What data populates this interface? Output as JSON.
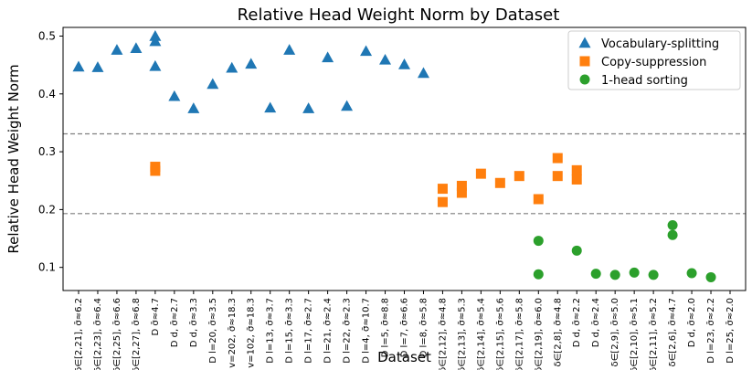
{
  "chart_data": {
    "type": "scatter",
    "title": "Relative Head Weight Norm by Dataset",
    "xlabel": "Dataset",
    "ylabel": "Relative Head Weight Norm",
    "ylim": [
      0.06,
      0.515
    ],
    "yticks": [
      0.1,
      0.2,
      0.3,
      0.4,
      0.5
    ],
    "ytick_labels": [
      "0.1",
      "0.2",
      "0.3",
      "0.4",
      "0.5"
    ],
    "legend_position": "top-right",
    "categories": [
      "D δ∈[2,21], σ̄≈6.2",
      "D δ∈[2,23], σ̄≈6.4",
      "D δ∈[2,25], σ̄≈6.6",
      "D δ∈[2,27], σ̄≈6.8",
      "D σ̄≈4.7",
      "D d, σ̄≈2.7",
      "D d, σ̄≈3.3",
      "D l=20, σ̄≈3.5",
      "D v=202, σ̄≈18.3",
      "D v=102, σ̄≈18.3",
      "D l=13, σ̄≈3.7",
      "D l=15, σ̄≈3.3",
      "D l=17, σ̄≈2.7",
      "D l=21, σ̄≈2.4",
      "D l=22, σ̄≈2.3",
      "D l=4, σ̄≈10.7",
      "D l=5, σ̄≈8.8",
      "D l=7, σ̄≈6.6",
      "D l=8, σ̄≈5.8",
      "D δ∈[2,12], σ̄≈4.8",
      "D δ∈[2,13], σ̄≈5.3",
      "D δ∈[2,14], σ̄≈5.4",
      "D δ∈[2,15], σ̄≈5.6",
      "D δ∈[2,17], σ̄≈5.8",
      "D δ∈[2,19], σ̄≈6.0",
      "D δ∈[2,8], σ̄≈4.8",
      "D d, σ̄≈2.2",
      "D d, σ̄≈2.4",
      "D δ∈[2,9], σ̄≈5.0",
      "D δ∈[2,10], σ̄≈5.1",
      "D δ∈[2,11], σ̄≈5.2",
      "D δ∈[2,6], σ̄≈4.7",
      "D d, σ̄≈2.0",
      "D l=23, σ̄≈2.2",
      "D l=25, σ̄≈2.0"
    ],
    "series": [
      {
        "name": "Vocabulary-splitting",
        "marker": "triangle",
        "color": "#1f77b4",
        "points": [
          {
            "x": 0,
            "y": 0.447
          },
          {
            "x": 1,
            "y": 0.446
          },
          {
            "x": 2,
            "y": 0.476
          },
          {
            "x": 3,
            "y": 0.479
          },
          {
            "x": 4,
            "y": 0.5
          },
          {
            "x": 4,
            "y": 0.491
          },
          {
            "x": 4,
            "y": 0.448
          },
          {
            "x": 5,
            "y": 0.396
          },
          {
            "x": 6,
            "y": 0.375
          },
          {
            "x": 7,
            "y": 0.417
          },
          {
            "x": 8,
            "y": 0.445
          },
          {
            "x": 9,
            "y": 0.452
          },
          {
            "x": 10,
            "y": 0.376
          },
          {
            "x": 11,
            "y": 0.476
          },
          {
            "x": 12,
            "y": 0.375
          },
          {
            "x": 13,
            "y": 0.463
          },
          {
            "x": 14,
            "y": 0.379
          },
          {
            "x": 15,
            "y": 0.474
          },
          {
            "x": 16,
            "y": 0.459
          },
          {
            "x": 17,
            "y": 0.451
          },
          {
            "x": 18,
            "y": 0.436
          }
        ]
      },
      {
        "name": "Copy-suppression",
        "marker": "square",
        "color": "#ff7f0e",
        "points": [
          {
            "x": 4,
            "y": 0.274
          },
          {
            "x": 4,
            "y": 0.267
          },
          {
            "x": 19,
            "y": 0.236
          },
          {
            "x": 19,
            "y": 0.213
          },
          {
            "x": 20,
            "y": 0.241
          },
          {
            "x": 20,
            "y": 0.229
          },
          {
            "x": 21,
            "y": 0.262
          },
          {
            "x": 22,
            "y": 0.246
          },
          {
            "x": 23,
            "y": 0.258
          },
          {
            "x": 24,
            "y": 0.218
          },
          {
            "x": 25,
            "y": 0.289
          },
          {
            "x": 25,
            "y": 0.258
          },
          {
            "x": 26,
            "y": 0.268
          },
          {
            "x": 26,
            "y": 0.252
          }
        ]
      },
      {
        "name": "1-head sorting",
        "marker": "circle",
        "color": "#2ca02c",
        "points": [
          {
            "x": 24,
            "y": 0.146
          },
          {
            "x": 24,
            "y": 0.088
          },
          {
            "x": 26,
            "y": 0.129
          },
          {
            "x": 27,
            "y": 0.089
          },
          {
            "x": 28,
            "y": 0.087
          },
          {
            "x": 29,
            "y": 0.091
          },
          {
            "x": 30,
            "y": 0.087
          },
          {
            "x": 31,
            "y": 0.173
          },
          {
            "x": 31,
            "y": 0.156
          },
          {
            "x": 32,
            "y": 0.09
          },
          {
            "x": 33,
            "y": 0.083
          }
        ]
      }
    ],
    "reference_lines": [
      {
        "y": 0.331,
        "style": "dashed",
        "color": "#7f7f7f"
      },
      {
        "y": 0.193,
        "style": "dashed",
        "color": "#7f7f7f"
      }
    ]
  }
}
